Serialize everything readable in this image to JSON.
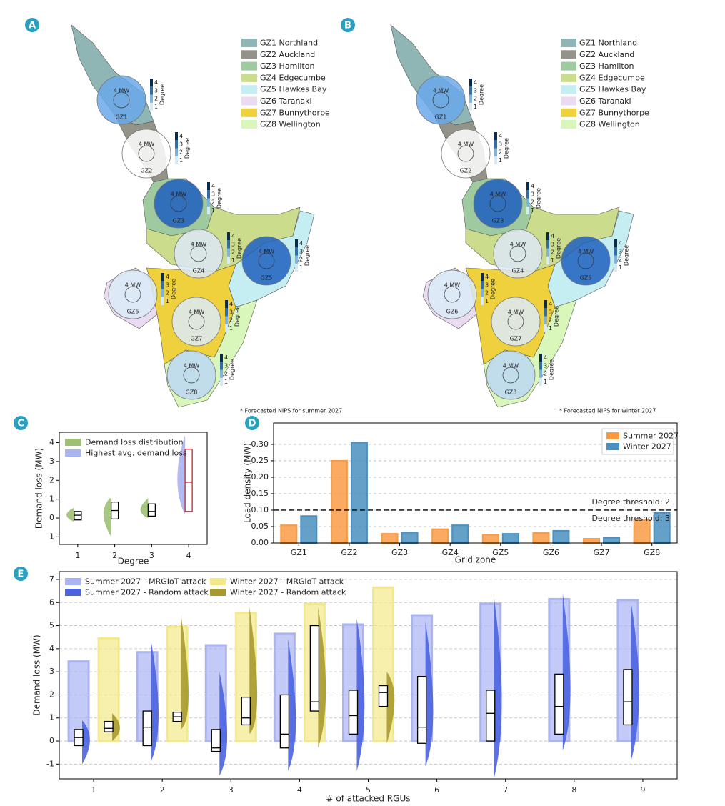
{
  "maps": [
    {
      "panel": "A",
      "legend": [
        {
          "name": "GZ1 Northland",
          "color": "#8fb5b5"
        },
        {
          "name": "GZ2 Auckland",
          "color": "#93938a"
        },
        {
          "name": "GZ3 Hamilton",
          "color": "#9fca9f"
        },
        {
          "name": "GZ4 Edgecumbe",
          "color": "#cbdc8c"
        },
        {
          "name": "GZ5 Hawkes Bay",
          "color": "#c4eef1"
        },
        {
          "name": "GZ6 Taranaki",
          "color": "#e9dbf0"
        },
        {
          "name": "GZ7 Bunnythorpe",
          "color": "#efd13e"
        },
        {
          "name": "GZ8 Wellington",
          "color": "#d9f6bb"
        }
      ],
      "zones": [
        "GZ1",
        "GZ2",
        "GZ3",
        "GZ4",
        "GZ5",
        "GZ6",
        "GZ7",
        "GZ8"
      ],
      "scale_label": "4 MW",
      "degree_label": "Degree",
      "degree_ticks": [
        1,
        2,
        3,
        4
      ],
      "footnote": "* Forecasted NIPS for summer 2027"
    },
    {
      "panel": "B",
      "legend": [
        {
          "name": "GZ1 Northland",
          "color": "#8fb5b5"
        },
        {
          "name": "GZ2 Auckland",
          "color": "#93938a"
        },
        {
          "name": "GZ3 Hamilton",
          "color": "#9fca9f"
        },
        {
          "name": "GZ4 Edgecumbe",
          "color": "#cbdc8c"
        },
        {
          "name": "GZ5 Hawkes Bay",
          "color": "#c4eef1"
        },
        {
          "name": "GZ6 Taranaki",
          "color": "#e9dbf0"
        },
        {
          "name": "GZ7 Bunnythorpe",
          "color": "#efd13e"
        },
        {
          "name": "GZ8 Wellington",
          "color": "#d9f6bb"
        }
      ],
      "zones": [
        "GZ1",
        "GZ2",
        "GZ3",
        "GZ4",
        "GZ5",
        "GZ6",
        "GZ7",
        "GZ8"
      ],
      "scale_label": "4 MW",
      "degree_label": "Degree",
      "degree_ticks": [
        1,
        2,
        3,
        4
      ],
      "footnote": "* Forecasted NIPS for winter 2027"
    }
  ],
  "chart_data": [
    {
      "panel": "C",
      "type": "box",
      "xlabel": "Degree",
      "ylabel": "Demand loss (MW)",
      "categories": [
        1,
        2,
        3,
        4
      ],
      "ylim": [
        -1.4,
        4.55
      ],
      "yticks": [
        -1,
        0,
        1,
        2,
        3,
        4
      ],
      "grid": false,
      "legend": "upper left",
      "series": [
        {
          "name": "Demand loss distribution",
          "color": "#9dc073",
          "min": [
            -0.2,
            -1,
            0,
            null
          ],
          "max": [
            0.55,
            1.1,
            1.05,
            null
          ],
          "q1": [
            -0.1,
            -0.05,
            0.1,
            null
          ],
          "median": [
            0.15,
            0.4,
            0.35,
            null
          ],
          "q3": [
            0.35,
            0.85,
            0.75,
            null
          ]
        },
        {
          "name": "Highest avg. demand loss",
          "color": "#aab4f0",
          "box_color": "#c0262d",
          "min": [
            null,
            null,
            null,
            0.15
          ],
          "max": [
            null,
            null,
            null,
            4.4
          ],
          "q1": [
            null,
            null,
            null,
            0.35
          ],
          "median": [
            null,
            null,
            null,
            1.9
          ],
          "q3": [
            null,
            null,
            null,
            3.65
          ]
        }
      ]
    },
    {
      "panel": "D",
      "type": "bar",
      "xlabel": "Grid zone",
      "ylabel": "Load density (MW)",
      "categories": [
        "GZ1",
        "GZ2",
        "GZ3",
        "GZ4",
        "GZ5",
        "GZ6",
        "GZ7",
        "GZ8"
      ],
      "ylim": [
        0,
        0.365
      ],
      "yticks": [
        {
          "value": 0,
          "label": "0.00"
        },
        {
          "value": 0.05,
          "label": "0.05"
        },
        {
          "value": 0.1,
          "label": "0.10"
        },
        {
          "value": 0.15,
          "label": "0.15"
        },
        {
          "value": 0.2,
          "label": "0.20"
        },
        {
          "value": 0.25,
          "label": "0.25"
        },
        {
          "value": 0.3,
          "label": "0.30"
        }
      ],
      "grid": true,
      "legend": "upper right",
      "series": [
        {
          "name": "Summer 2027",
          "color": "#f99b45",
          "values": [
            0.054,
            0.25,
            0.028,
            0.042,
            0.025,
            0.031,
            0.013,
            0.07
          ]
        },
        {
          "name": "Winter 2027",
          "color": "#4a8fc0",
          "values": [
            0.082,
            0.305,
            0.032,
            0.054,
            0.028,
            0.037,
            0.016,
            0.092
          ]
        }
      ],
      "threshold": 0.1,
      "annotations": [
        "Degree threshold: 2",
        "Degree threshold: 3"
      ]
    },
    {
      "panel": "E",
      "type": "box",
      "xlabel": "# of attacked RGUs",
      "ylabel": "Demand loss (MW)",
      "categories": [
        1,
        2,
        3,
        4,
        5,
        6,
        7,
        8,
        9
      ],
      "ylim": [
        -1.64,
        7.34
      ],
      "yticks": [
        -1,
        0,
        1,
        2,
        3,
        4,
        5,
        6,
        7
      ],
      "grid": true,
      "legend": "upper left",
      "series": [
        {
          "name": "Summer 2027 - MRGIoT attack",
          "color": "#aab4f3",
          "values": [
            3.45,
            3.85,
            4.15,
            4.65,
            5.05,
            5.45,
            5.95,
            6.15,
            6.1
          ]
        },
        {
          "name": "Summer 2027 - Random attack",
          "color": "#4a63e0",
          "min": [
            -1,
            -0.9,
            -1.5,
            -1.3,
            -1.3,
            -1.1,
            -1.6,
            -0.4,
            -0.8
          ],
          "max": [
            0.9,
            4.4,
            3,
            4.4,
            5.3,
            5.2,
            6.2,
            6.4,
            5.9
          ],
          "q1": [
            -0.2,
            -0.2,
            -0.45,
            -0.3,
            0.3,
            -0.1,
            0,
            0.3,
            0.7
          ],
          "median": [
            0.15,
            0.6,
            -0.3,
            0.3,
            1.1,
            0.6,
            1.2,
            1.5,
            1.7
          ],
          "q3": [
            0.5,
            1.3,
            0.5,
            2,
            2.2,
            2.8,
            2.2,
            2.9,
            3.1
          ]
        },
        {
          "name": "Winter 2027 - MRGIoT attack",
          "color": "#f3e98a",
          "values": [
            4.45,
            4.95,
            5.55,
            5.95,
            6.65,
            null,
            null,
            null,
            null
          ]
        },
        {
          "name": "Winter 2027 - Random attack",
          "color": "#a8992e",
          "min": [
            0,
            0.5,
            0.3,
            -0.3,
            -0.1,
            null,
            null,
            null,
            null
          ],
          "max": [
            1.2,
            5.5,
            5.8,
            5.8,
            3,
            null,
            null,
            null,
            null
          ],
          "q1": [
            0.4,
            0.85,
            0.7,
            1.3,
            1.5,
            null,
            null,
            null,
            null
          ],
          "median": [
            0.55,
            1.05,
            1,
            1.7,
            2.1,
            null,
            null,
            null,
            null
          ],
          "q3": [
            0.85,
            1.25,
            1.9,
            5,
            2.4,
            null,
            null,
            null,
            null
          ]
        }
      ]
    }
  ]
}
